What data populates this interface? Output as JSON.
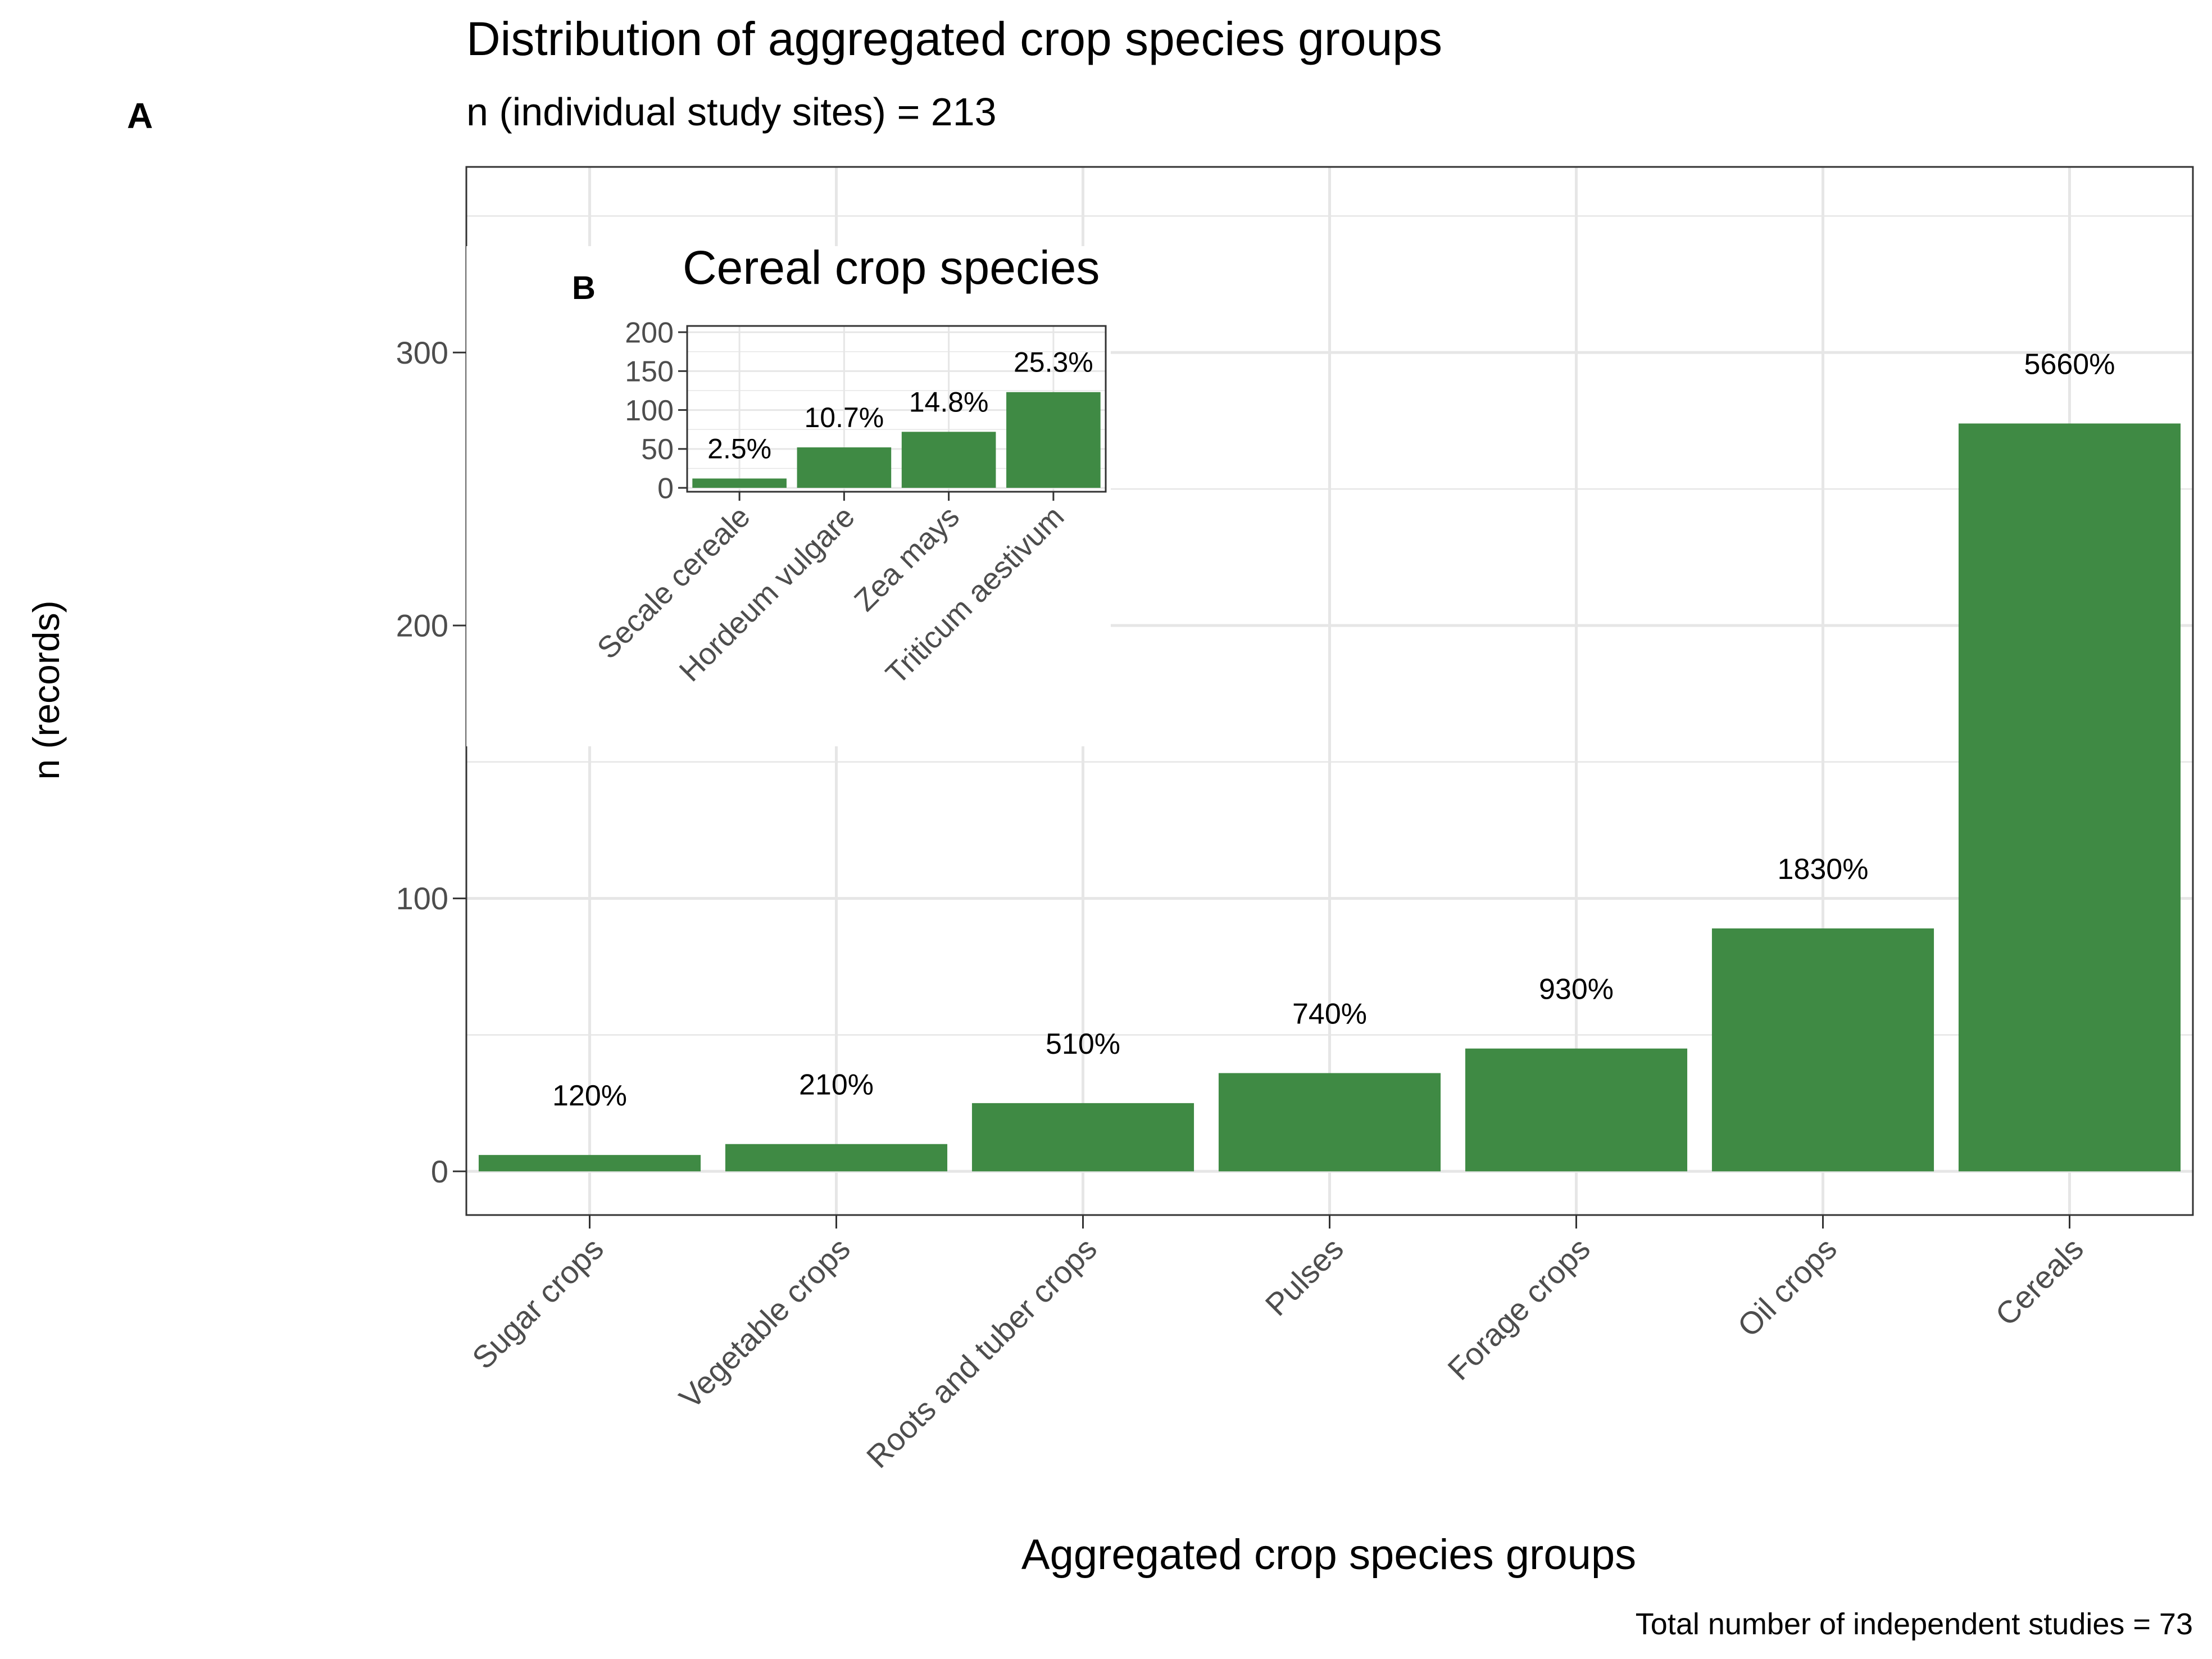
{
  "panel_a_label": "A",
  "panel_b_label": "B",
  "footer": "Total number of independent studies = 73",
  "colors": {
    "bar": "#3f8a44",
    "grid": "#e6e6e6",
    "axis": "#333333",
    "text": "#000000",
    "tick_text": "#4d4d4d"
  },
  "chart_data": [
    {
      "type": "bar",
      "title": "Distribution of aggregated crop species groups",
      "subtitle": "n (individual study sites) =  213",
      "xlabel": "Aggregated crop species groups",
      "ylabel": "n (records)",
      "categories": [
        "Sugar crops",
        "Vegetable crops",
        "Roots and tuber crops",
        "Pulses",
        "Forage crops",
        "Oil crops",
        "Cereals"
      ],
      "values": [
        6,
        10,
        25,
        36,
        45,
        89,
        274
      ],
      "data_labels": [
        "120%",
        "210%",
        "510%",
        "740%",
        "930%",
        "1830%",
        "5660%"
      ],
      "yticks": [
        0,
        100,
        200,
        300
      ],
      "ylim": [
        -16,
        368
      ],
      "grid": true,
      "legend": "none"
    },
    {
      "type": "bar",
      "title": "Cereal crop species",
      "xlabel": "",
      "ylabel": "",
      "categories": [
        "Secale cereale",
        "Hordeum vulgare",
        "Zea mays",
        "Triticum aestivum"
      ],
      "values": [
        12,
        52,
        72,
        123
      ],
      "data_labels": [
        "2.5%",
        "10.7%",
        "14.8%",
        "25.3%"
      ],
      "yticks": [
        0,
        50,
        100,
        150,
        200
      ],
      "ylim": [
        -5,
        208
      ],
      "grid": true,
      "legend": "none"
    }
  ]
}
